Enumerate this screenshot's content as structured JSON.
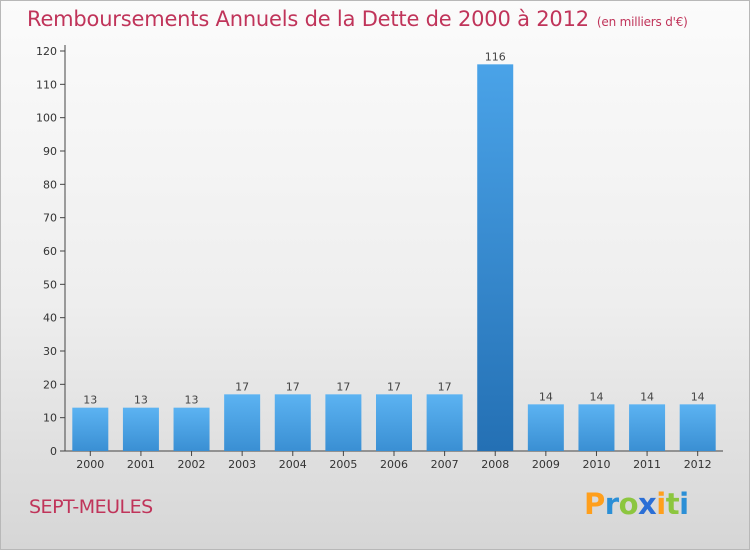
{
  "title": "Remboursements Annuels de la Dette de 2000 à 2012",
  "subtitle": "(en milliers d'€)",
  "commune": "SEPT-MEULES",
  "brand": "Proxiti",
  "colors": {
    "bar_light": "#5aaff0",
    "bar_dark": "#2f86cc",
    "title": "#c0345a"
  },
  "chart_data": {
    "type": "bar",
    "categories": [
      "2000",
      "2001",
      "2002",
      "2003",
      "2004",
      "2005",
      "2006",
      "2007",
      "2008",
      "2009",
      "2010",
      "2011",
      "2012"
    ],
    "values": [
      13,
      13,
      13,
      17,
      17,
      17,
      17,
      17,
      116,
      14,
      14,
      14,
      14
    ],
    "data_labels": [
      "13",
      "13",
      "13",
      "17",
      "17",
      "17",
      "17",
      "17",
      "116",
      "14",
      "14",
      "14",
      "14"
    ],
    "highlight_index": 8,
    "ylim": [
      0,
      120
    ],
    "yticks": [
      0,
      10,
      20,
      30,
      40,
      50,
      60,
      70,
      80,
      90,
      100,
      110,
      120
    ],
    "grid": false,
    "legend": "none"
  }
}
